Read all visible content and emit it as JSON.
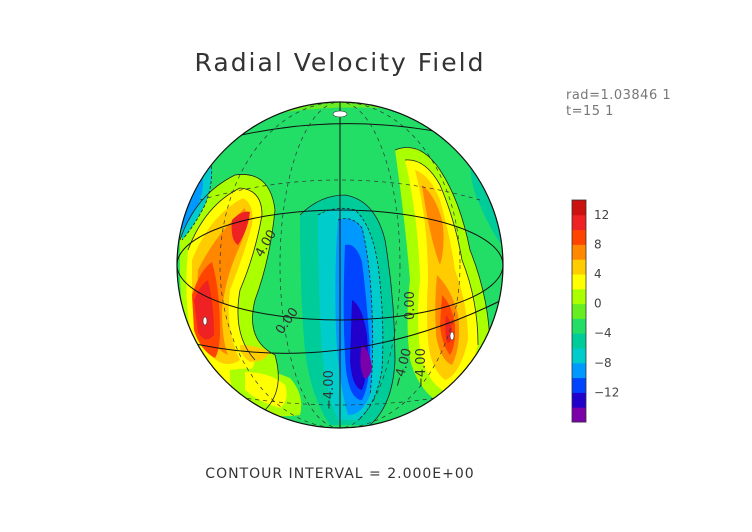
{
  "title": "Radial Velocity Field",
  "info": {
    "rad": "rad=1.03846 1",
    "t": "t=15 1"
  },
  "footer": "CONTOUR INTERVAL = 2.000E+00",
  "chart_data": {
    "type": "contour",
    "projection": "orthographic sphere",
    "title": "Radial Velocity Field",
    "contour_interval": 2.0,
    "colorbar": {
      "ticks": [
        "12",
        "8",
        "4",
        "0",
        "−4",
        "−8",
        "−12"
      ],
      "tick_values": [
        12,
        8,
        4,
        0,
        -4,
        -8,
        -12
      ],
      "range": [
        -16,
        14
      ],
      "colors": [
        "#7a00aa",
        "#2200cc",
        "#0044ff",
        "#0099ff",
        "#00cccc",
        "#00cc99",
        "#22dd66",
        "#66ee22",
        "#aaff00",
        "#ffff00",
        "#ffcc00",
        "#ff8800",
        "#ff4400",
        "#ee2222",
        "#cc1111"
      ]
    },
    "contour_labels": [
      "4.00",
      "0.00",
      "0.00",
      "−4.00",
      "−4.00",
      "−4.00"
    ],
    "features": [
      {
        "name": "positive cell west",
        "value": 12
      },
      {
        "name": "positive cell northwest",
        "value": 10
      },
      {
        "name": "positive cell east",
        "value": 12
      },
      {
        "name": "positive cell northeast",
        "value": 8
      },
      {
        "name": "negative cell central",
        "value": -14
      },
      {
        "name": "negative cell west limb",
        "value": -6
      }
    ]
  }
}
